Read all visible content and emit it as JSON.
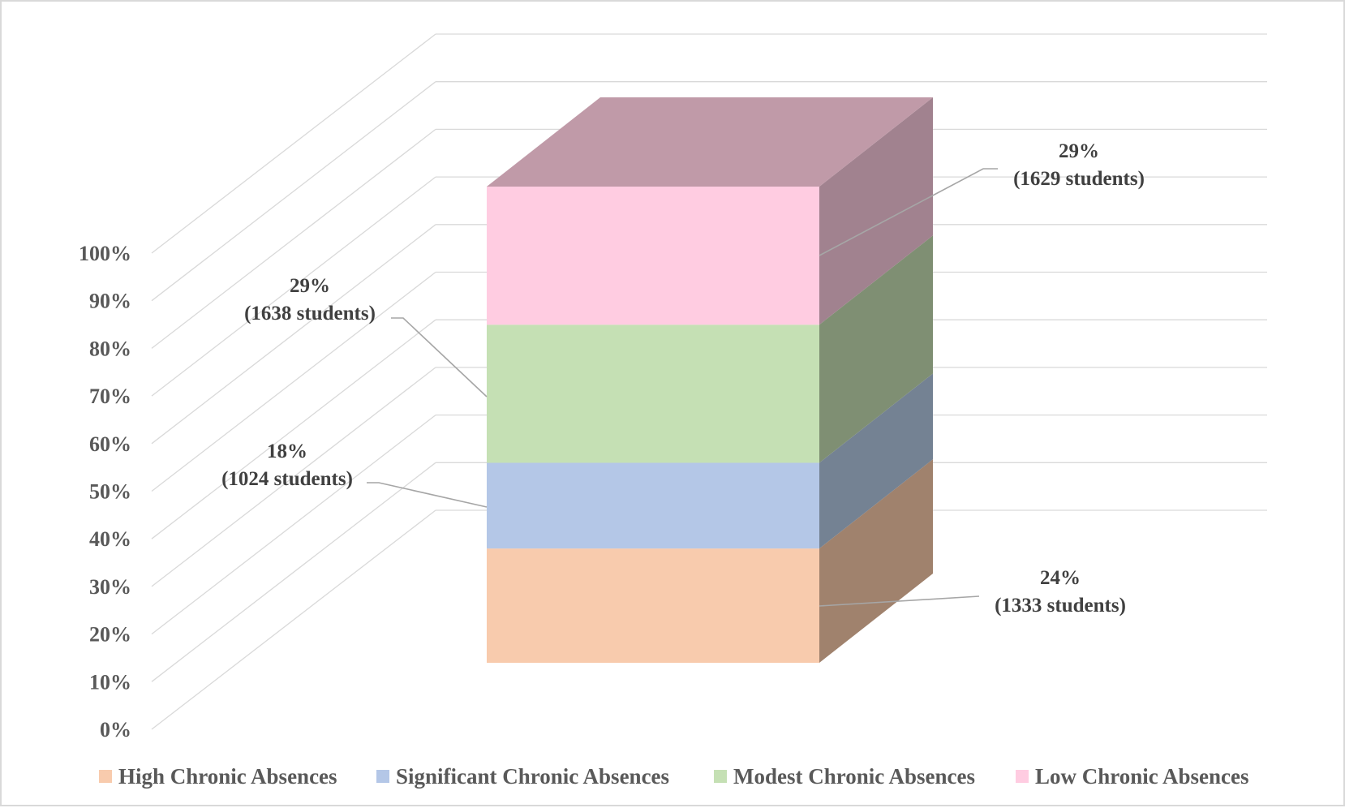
{
  "chart_data": {
    "type": "bar",
    "subtype": "3d-stacked-100-percent",
    "title": "",
    "xlabel": "",
    "ylabel": "",
    "ylim": [
      0,
      100
    ],
    "y_ticks": [
      "0%",
      "10%",
      "20%",
      "30%",
      "40%",
      "50%",
      "60%",
      "70%",
      "80%",
      "90%",
      "100%"
    ],
    "grid": true,
    "legend_position": "bottom",
    "series": [
      {
        "name": "High Chronic Absences",
        "percent": 24,
        "percent_label": "24%",
        "count_label": "(1333 students)",
        "front_color": "#f8cbad",
        "side_color": "#a0826d",
        "label_side": "right"
      },
      {
        "name": "Significant Chronic Absences",
        "percent": 18,
        "percent_label": "18%",
        "count_label": "(1024 students)",
        "front_color": "#b4c7e7",
        "side_color": "#748293",
        "label_side": "left"
      },
      {
        "name": "Modest Chronic Absences",
        "percent": 29,
        "percent_label": "29%",
        "count_label": "(1638 students)",
        "front_color": "#c5e0b4",
        "side_color": "#7f8f73",
        "label_side": "left"
      },
      {
        "name": "Low Chronic Absences",
        "percent": 29,
        "percent_label": "29%",
        "count_label": "(1629 students)",
        "front_color": "#ffcce1",
        "side_color": "#a1828f",
        "top_color": "#c09aa8",
        "label_side": "right"
      }
    ]
  }
}
